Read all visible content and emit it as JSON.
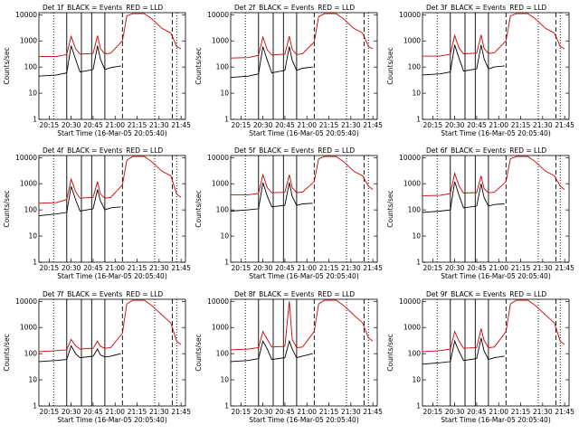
{
  "colors": {
    "events": "#000000",
    "lld": "#cc0000",
    "frame": "#000000"
  },
  "panel_common": {
    "ylabel": "Counts/sec",
    "xlabel": "Start Time (16-Mar-05 20:05:40)",
    "legend_black": "BLACK = Events",
    "legend_red": "RED = LLD",
    "yscale": "log",
    "ylim": [
      1,
      12000
    ],
    "ytick_labels": [
      "1",
      "10",
      "100",
      "1000",
      "10000"
    ],
    "xlim": [
      "20:08",
      "21:48"
    ],
    "xtick_labels": [
      "20:15",
      "20:30",
      "20:45",
      "21:00",
      "21:15",
      "21:30",
      "21:45"
    ]
  },
  "chart_data": [
    {
      "type": "line",
      "det": "Det 1f",
      "xlabel": "Start Time (16-Mar-05 20:05:40)",
      "ylabel": "Counts/sec",
      "yscale": "log",
      "series": [
        {
          "name": "BLACK = Events",
          "x": [
            "20:08",
            "20:20",
            "20:27",
            "20:30",
            "20:33",
            "20:36",
            "20:45",
            "20:48",
            "20:50",
            "20:53",
            "20:57",
            "21:04"
          ],
          "y": [
            45,
            50,
            60,
            650,
            200,
            65,
            80,
            650,
            200,
            80,
            95,
            110
          ]
        },
        {
          "name": "RED = LLD",
          "x": [
            "20:08",
            "20:20",
            "20:27",
            "20:30",
            "20:33",
            "20:36",
            "20:45",
            "20:48",
            "20:50",
            "20:53",
            "20:57",
            "21:05",
            "21:08",
            "21:12",
            "21:20",
            "21:25",
            "21:32",
            "21:38",
            "21:42",
            "21:45"
          ],
          "y": [
            250,
            250,
            300,
            1500,
            500,
            310,
            330,
            1600,
            500,
            320,
            340,
            1000,
            9000,
            11000,
            11000,
            7000,
            3000,
            2000,
            600,
            500
          ]
        }
      ],
      "solid_lines": [
        "20:27",
        "20:37",
        "20:44",
        "20:53"
      ],
      "dashed_lines": [
        "21:05",
        "21:39"
      ],
      "dotted_lines": [
        "20:18",
        "21:27",
        "21:42"
      ]
    },
    {
      "type": "line",
      "det": "Det 2f",
      "xlabel": "Start Time (16-Mar-05 20:05:40)",
      "ylabel": "Counts/sec",
      "yscale": "log",
      "series": [
        {
          "name": "BLACK = Events",
          "x": [
            "20:08",
            "20:20",
            "20:27",
            "20:30",
            "20:33",
            "20:36",
            "20:45",
            "20:48",
            "20:50",
            "20:53",
            "20:57",
            "21:04"
          ],
          "y": [
            40,
            45,
            55,
            600,
            180,
            60,
            75,
            600,
            180,
            75,
            90,
            100
          ]
        },
        {
          "name": "RED = LLD",
          "x": [
            "20:08",
            "20:20",
            "20:27",
            "20:30",
            "20:33",
            "20:36",
            "20:45",
            "20:48",
            "20:50",
            "20:53",
            "20:57",
            "21:05",
            "21:08",
            "21:12",
            "21:20",
            "21:25",
            "21:32",
            "21:38",
            "21:42",
            "21:45"
          ],
          "y": [
            220,
            230,
            280,
            1400,
            450,
            290,
            310,
            1500,
            470,
            300,
            320,
            900,
            8500,
            11000,
            11000,
            7000,
            3000,
            2000,
            600,
            500
          ]
        }
      ],
      "solid_lines": [
        "20:27",
        "20:37",
        "20:44",
        "20:53"
      ],
      "dashed_lines": [
        "21:05",
        "21:39"
      ],
      "dotted_lines": [
        "20:18",
        "21:27",
        "21:42"
      ]
    },
    {
      "type": "line",
      "det": "Det 3f",
      "xlabel": "Start Time (16-Mar-05 20:05:40)",
      "ylabel": "Counts/sec",
      "yscale": "log",
      "series": [
        {
          "name": "BLACK = Events",
          "x": [
            "20:08",
            "20:20",
            "20:27",
            "20:30",
            "20:33",
            "20:36",
            "20:45",
            "20:48",
            "20:50",
            "20:53",
            "20:57",
            "21:04"
          ],
          "y": [
            50,
            55,
            65,
            700,
            210,
            70,
            85,
            700,
            210,
            85,
            100,
            110
          ]
        },
        {
          "name": "RED = LLD",
          "x": [
            "20:08",
            "20:20",
            "20:27",
            "20:30",
            "20:33",
            "20:36",
            "20:45",
            "20:48",
            "20:50",
            "20:53",
            "20:57",
            "21:05",
            "21:08",
            "21:12",
            "21:20",
            "21:25",
            "21:32",
            "21:38",
            "21:42",
            "21:45"
          ],
          "y": [
            260,
            260,
            310,
            1600,
            520,
            320,
            340,
            1700,
            520,
            330,
            350,
            1000,
            9000,
            11000,
            11000,
            7000,
            3000,
            2000,
            600,
            500
          ]
        }
      ],
      "solid_lines": [
        "20:27",
        "20:37",
        "20:44",
        "20:53"
      ],
      "dashed_lines": [
        "21:05",
        "21:39"
      ],
      "dotted_lines": [
        "20:18",
        "21:27",
        "21:42"
      ]
    },
    {
      "type": "line",
      "det": "Det 4f",
      "xlabel": "Start Time (16-Mar-05 20:05:40)",
      "ylabel": "Counts/sec",
      "yscale": "log",
      "series": [
        {
          "name": "BLACK = Events",
          "x": [
            "20:08",
            "20:20",
            "20:27",
            "20:30",
            "20:33",
            "20:36",
            "20:45",
            "20:48",
            "20:50",
            "20:53",
            "20:57",
            "21:04"
          ],
          "y": [
            60,
            70,
            80,
            800,
            250,
            90,
            110,
            600,
            220,
            100,
            120,
            130
          ]
        },
        {
          "name": "RED = LLD",
          "x": [
            "20:08",
            "20:20",
            "20:27",
            "20:30",
            "20:33",
            "20:36",
            "20:45",
            "20:48",
            "20:50",
            "20:53",
            "20:57",
            "21:05",
            "21:08",
            "21:12",
            "21:20",
            "21:25",
            "21:32",
            "21:38",
            "21:42",
            "21:45"
          ],
          "y": [
            180,
            190,
            250,
            1500,
            500,
            280,
            300,
            1200,
            400,
            280,
            300,
            900,
            8000,
            11000,
            11000,
            7000,
            3000,
            2000,
            400,
            300
          ]
        }
      ],
      "solid_lines": [
        "20:27",
        "20:37",
        "20:44",
        "20:53"
      ],
      "dashed_lines": [
        "21:05",
        "21:39"
      ],
      "dotted_lines": [
        "20:18",
        "21:27",
        "21:42"
      ]
    },
    {
      "type": "line",
      "det": "Det 5f",
      "xlabel": "Start Time (16-Mar-05 20:05:40)",
      "ylabel": "Counts/sec",
      "yscale": "log",
      "series": [
        {
          "name": "BLACK = Events",
          "x": [
            "20:08",
            "20:20",
            "20:27",
            "20:30",
            "20:33",
            "20:36",
            "20:45",
            "20:48",
            "20:50",
            "20:53",
            "20:57",
            "21:04"
          ],
          "y": [
            90,
            100,
            110,
            1100,
            330,
            130,
            150,
            1100,
            330,
            150,
            170,
            180
          ]
        },
        {
          "name": "RED = LLD",
          "x": [
            "20:08",
            "20:20",
            "20:27",
            "20:30",
            "20:33",
            "20:36",
            "20:45",
            "20:48",
            "20:50",
            "20:53",
            "20:57",
            "21:05",
            "21:08",
            "21:12",
            "21:20",
            "21:25",
            "21:32",
            "21:38",
            "21:42",
            "21:45"
          ],
          "y": [
            380,
            380,
            430,
            2200,
            700,
            450,
            470,
            2200,
            700,
            460,
            480,
            1200,
            9000,
            11000,
            11000,
            7000,
            3000,
            2000,
            800,
            600
          ]
        }
      ],
      "solid_lines": [
        "20:27",
        "20:37",
        "20:44",
        "20:53"
      ],
      "dashed_lines": [
        "21:05",
        "21:39"
      ],
      "dotted_lines": [
        "20:18",
        "21:27",
        "21:42"
      ]
    },
    {
      "type": "line",
      "det": "Det 6f",
      "xlabel": "Start Time (16-Mar-05 20:05:40)",
      "ylabel": "Counts/sec",
      "yscale": "log",
      "series": [
        {
          "name": "BLACK = Events",
          "x": [
            "20:08",
            "20:20",
            "20:27",
            "20:30",
            "20:33",
            "20:36",
            "20:45",
            "20:48",
            "20:50",
            "20:53",
            "20:57",
            "21:04"
          ],
          "y": [
            80,
            90,
            100,
            1200,
            350,
            120,
            140,
            1000,
            300,
            140,
            160,
            170
          ]
        },
        {
          "name": "RED = LLD",
          "x": [
            "20:08",
            "20:20",
            "20:27",
            "20:30",
            "20:33",
            "20:36",
            "20:45",
            "20:48",
            "20:50",
            "20:53",
            "20:57",
            "21:05",
            "21:08",
            "21:12",
            "21:20",
            "21:25",
            "21:32",
            "21:38",
            "21:42",
            "21:45"
          ],
          "y": [
            350,
            360,
            420,
            2500,
            800,
            440,
            460,
            2000,
            650,
            450,
            470,
            1200,
            9000,
            11000,
            11000,
            7000,
            3000,
            2000,
            800,
            600
          ]
        }
      ],
      "solid_lines": [
        "20:27",
        "20:37",
        "20:44",
        "20:53"
      ],
      "dashed_lines": [
        "21:05",
        "21:39"
      ],
      "dotted_lines": [
        "20:18",
        "21:27",
        "21:42"
      ]
    },
    {
      "type": "line",
      "det": "Det 7f",
      "xlabel": "Start Time (16-Mar-05 20:05:40)",
      "ylabel": "Counts/sec",
      "yscale": "log",
      "series": [
        {
          "name": "BLACK = Events",
          "x": [
            "20:08",
            "20:20",
            "20:27",
            "20:30",
            "20:33",
            "20:36",
            "20:45",
            "20:48",
            "20:50",
            "20:53",
            "20:57",
            "21:04"
          ],
          "y": [
            50,
            55,
            60,
            200,
            100,
            70,
            80,
            150,
            90,
            75,
            80,
            100
          ]
        },
        {
          "name": "RED = LLD",
          "x": [
            "20:08",
            "20:20",
            "20:27",
            "20:30",
            "20:33",
            "20:36",
            "20:45",
            "20:48",
            "20:50",
            "20:53",
            "20:57",
            "21:05",
            "21:08",
            "21:12",
            "21:20",
            "21:25",
            "21:32",
            "21:38",
            "21:42",
            "21:45"
          ],
          "y": [
            120,
            130,
            140,
            350,
            200,
            150,
            160,
            300,
            190,
            160,
            170,
            600,
            8000,
            11000,
            11000,
            7000,
            3000,
            1500,
            300,
            220
          ]
        }
      ],
      "solid_lines": [
        "20:27",
        "20:37",
        "20:44",
        "20:53"
      ],
      "dashed_lines": [
        "21:05",
        "21:39"
      ],
      "dotted_lines": [
        "20:18",
        "21:27",
        "21:42"
      ]
    },
    {
      "type": "line",
      "det": "Det 8f",
      "xlabel": "Start Time (16-Mar-05 20:05:40)",
      "ylabel": "Counts/sec",
      "yscale": "log",
      "series": [
        {
          "name": "BLACK = Events",
          "x": [
            "20:08",
            "20:20",
            "20:27",
            "20:30",
            "20:33",
            "20:36",
            "20:45",
            "20:48",
            "20:50",
            "20:53",
            "20:57",
            "21:04"
          ],
          "y": [
            50,
            55,
            65,
            300,
            150,
            60,
            70,
            300,
            150,
            70,
            80,
            100
          ]
        },
        {
          "name": "RED = LLD",
          "x": [
            "20:08",
            "20:20",
            "20:27",
            "20:30",
            "20:33",
            "20:36",
            "20:45",
            "20:48",
            "20:50",
            "20:53",
            "20:57",
            "21:05",
            "21:08",
            "21:12",
            "21:20",
            "21:25",
            "21:32",
            "21:38",
            "21:42",
            "21:45"
          ],
          "y": [
            140,
            150,
            170,
            700,
            350,
            180,
            190,
            10000,
            350,
            170,
            180,
            700,
            8000,
            11000,
            11000,
            7000,
            3000,
            1500,
            400,
            300
          ]
        }
      ],
      "solid_lines": [
        "20:27",
        "20:37",
        "20:44",
        "20:53"
      ],
      "dashed_lines": [
        "21:05",
        "21:39"
      ],
      "dotted_lines": [
        "20:18",
        "21:27",
        "21:42"
      ]
    },
    {
      "type": "line",
      "det": "Det 9f",
      "xlabel": "Start Time (16-Mar-05 20:05:40)",
      "ylabel": "Counts/sec",
      "yscale": "log",
      "series": [
        {
          "name": "BLACK = Events",
          "x": [
            "20:08",
            "20:20",
            "20:27",
            "20:30",
            "20:33",
            "20:36",
            "20:45",
            "20:48",
            "20:50",
            "20:53",
            "20:57",
            "21:04"
          ],
          "y": [
            40,
            45,
            50,
            300,
            120,
            55,
            65,
            400,
            130,
            60,
            70,
            80
          ]
        },
        {
          "name": "RED = LLD",
          "x": [
            "20:08",
            "20:20",
            "20:27",
            "20:30",
            "20:33",
            "20:36",
            "20:45",
            "20:48",
            "20:50",
            "20:53",
            "20:57",
            "21:05",
            "21:08",
            "21:12",
            "21:20",
            "21:25",
            "21:32",
            "21:38",
            "21:42",
            "21:45"
          ],
          "y": [
            120,
            130,
            150,
            700,
            300,
            160,
            170,
            900,
            320,
            170,
            180,
            700,
            8000,
            11000,
            11000,
            7000,
            3000,
            1500,
            300,
            220
          ]
        }
      ],
      "solid_lines": [
        "20:27",
        "20:37",
        "20:44",
        "20:53"
      ],
      "dashed_lines": [
        "21:05",
        "21:39"
      ],
      "dotted_lines": [
        "20:18",
        "21:27",
        "21:42"
      ]
    }
  ]
}
